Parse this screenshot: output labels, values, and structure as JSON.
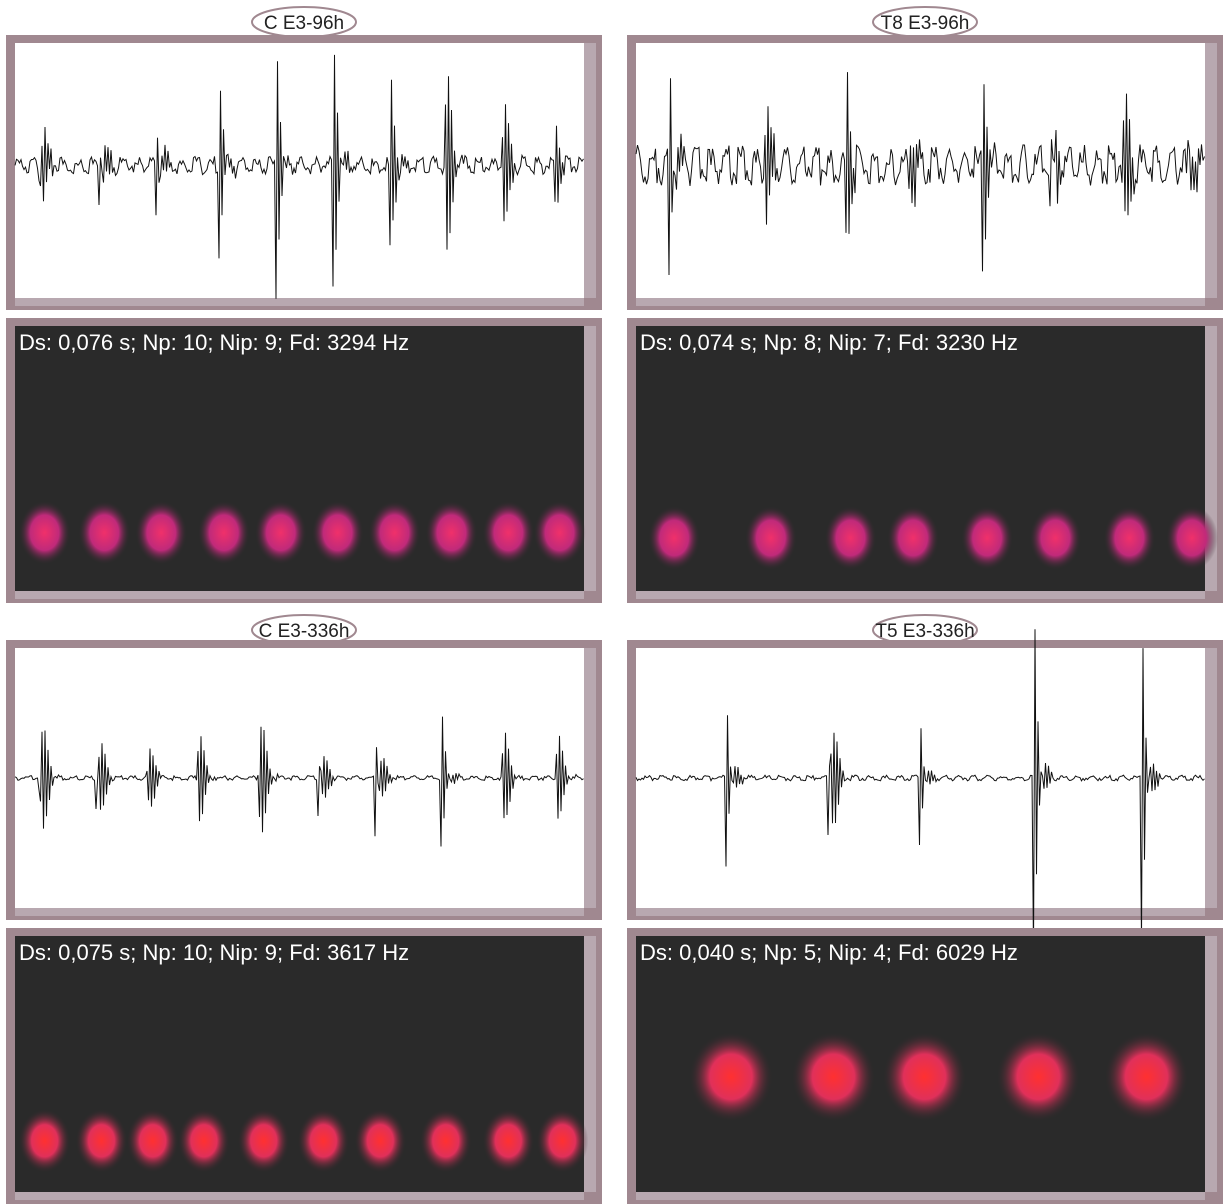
{
  "panels": [
    {
      "title": "C E3-96h",
      "caption": "Ds: 0,076 s; Np: 10; Nip: 9; Fd: 3294 Hz"
    },
    {
      "title": "T8 E3-96h",
      "caption": "Ds: 0,074 s; Np: 8; Nip: 7; Fd: 3230 Hz"
    },
    {
      "title": "C E3-336h",
      "caption": "Ds: 0,075 s; Np: 10; Nip: 9; Fd: 3617 Hz"
    },
    {
      "title": "T5 E3-336h",
      "caption": "Ds: 0,040 s; Np: 5; Nip: 4; Fd: 6029 Hz"
    }
  ]
}
